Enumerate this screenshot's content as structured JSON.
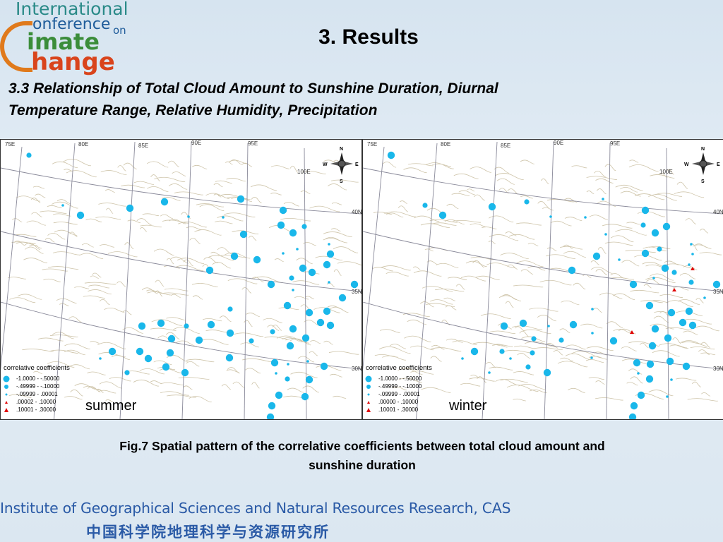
{
  "logo": {
    "line1": "International",
    "line2": "onference",
    "on": "on",
    "line3": "imate",
    "line4": "hange"
  },
  "slide": {
    "title": "3. Results",
    "subtitle_line1": "3.3 Relationship of Total Cloud Amount to Sunshine Duration, Diurnal",
    "subtitle_line2": "Temperature Range, Relative Humidity, Precipitation"
  },
  "maps": [
    {
      "season": "summer",
      "lon_labels": [
        "75E",
        "80E",
        "85E",
        "90E",
        "95E",
        "100E"
      ],
      "lat_labels": [
        "40N",
        "35N",
        "30N"
      ],
      "compass": [
        "N",
        "E",
        "S",
        "W"
      ],
      "legend_title": "correlative coefficients",
      "legend": [
        "-1.0000 - -.50000",
        "-.49999 - -.10000",
        "-.09999 - .00001",
        ".00002 - .10000",
        ".10001 - .30000"
      ]
    },
    {
      "season": "winter",
      "lon_labels": [
        "75E",
        "80E",
        "85E",
        "90E",
        "95E",
        "100E"
      ],
      "lat_labels": [
        "40N",
        "35N",
        "30N"
      ],
      "compass": [
        "N",
        "E",
        "S",
        "W"
      ],
      "legend_title": "correlative coefficients",
      "legend": [
        "-1.0000 - -.50000",
        "-.49999 - -.10000",
        "-.09999 - .00001",
        ".00000 - .10000",
        ".10001 - .30000"
      ]
    }
  ],
  "caption": {
    "line1": "Fig.7 Spatial pattern of the correlative coefficients  between total cloud amount and",
    "line2": "sunshine duration"
  },
  "footer": {
    "english": "Institute of Geographical Sciences and Natural Resources Research, CAS",
    "chinese": "中国科学院地理科学与资源研究所"
  },
  "colors": {
    "station_marker": "#19b7ea",
    "positive_marker": "#e00000",
    "footer_text": "#2a5aa6"
  }
}
